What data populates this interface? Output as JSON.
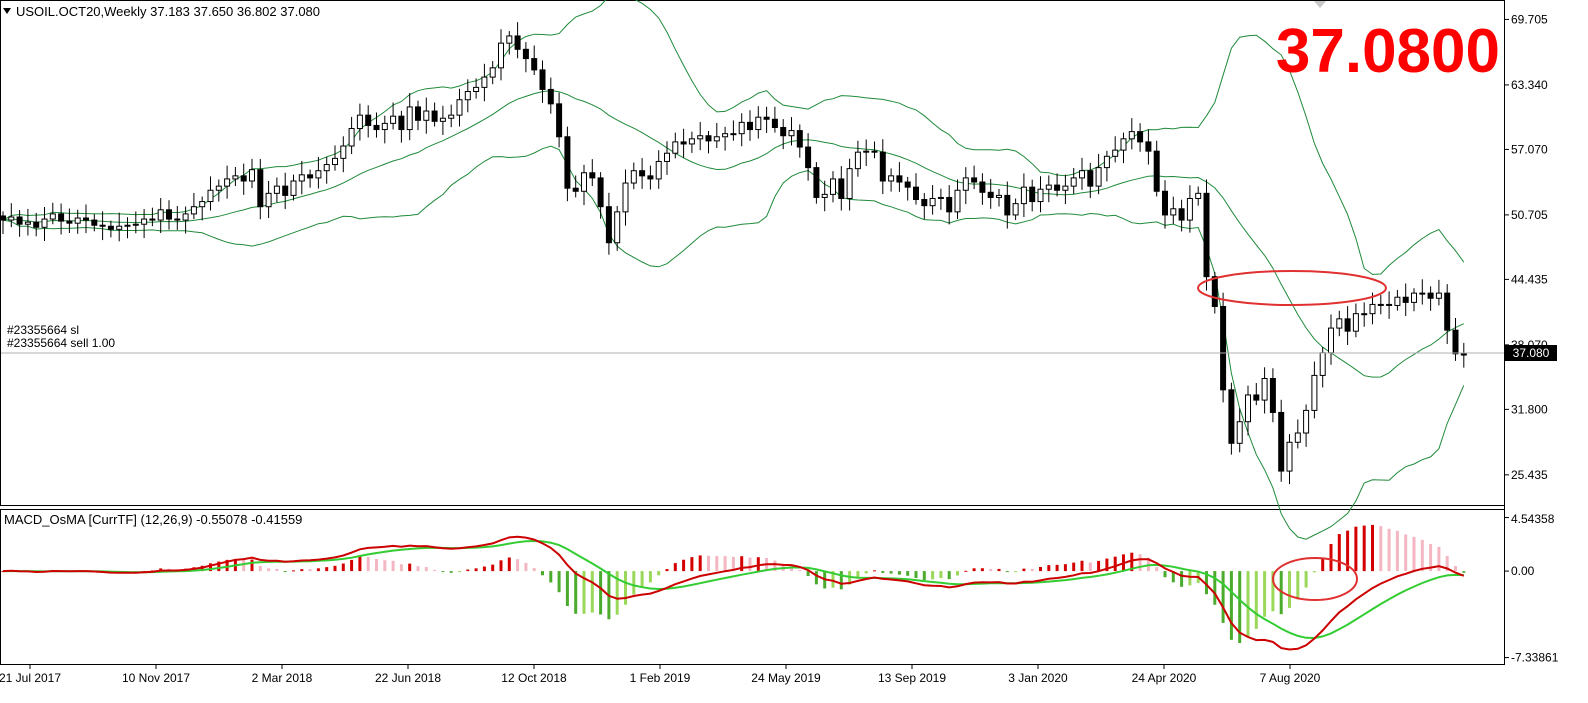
{
  "header": {
    "symbol_line": "USOIL.OCT20,Weekly  37.183 37.650 36.802 37.080",
    "big_price": "37.0800",
    "big_price_color": "#ff0000"
  },
  "orders": {
    "line1": "#23355664 sl",
    "line2": "#23355664 sell 1.00"
  },
  "indicator": {
    "label": "MACD_OsMA [CurrTF] (12,26,9) -0.55078 -0.41559"
  },
  "colors": {
    "candle": "#000000",
    "bands": "#1f8a3a",
    "macd_line": "#cc0000",
    "signal_line": "#33cc33",
    "hist_pos_strong": "#d40000",
    "hist_pos_weak": "#f4b6c2",
    "hist_neg_weak": "#9ad85a",
    "hist_neg_strong": "#4bab2c",
    "annotation": "#e03030"
  },
  "chart_data": [
    {
      "type": "candlestick",
      "title": "USOIL.OCT20,Weekly",
      "current_price": 37.08,
      "price_axis_ticks": [
        "69.705",
        "63.340",
        "57.070",
        "50.705",
        "44.435",
        "38.070",
        "31.800",
        "25.435"
      ],
      "price_axis_values": [
        69.705,
        63.34,
        57.07,
        50.705,
        44.435,
        38.07,
        31.8,
        25.435
      ],
      "current_price_label": "37.080",
      "ylim": [
        22.6,
        71.4
      ],
      "date_axis_labels": [
        "21 Jul 2017",
        "10 Nov 2017",
        "2 Mar 2018",
        "22 Jun 2018",
        "12 Oct 2018",
        "1 Feb 2019",
        "24 May 2019",
        "13 Sep 2019",
        "3 Jan 2020",
        "24 Apr 2020",
        "7 Aug 2020"
      ],
      "weekly_closes": [
        50.2,
        50.5,
        49.8,
        50.0,
        49.5,
        50.3,
        50.8,
        50.1,
        49.9,
        50.4,
        50.2,
        49.7,
        49.6,
        49.3,
        49.6,
        49.7,
        49.8,
        50.3,
        50.2,
        51.2,
        50.3,
        50.2,
        50.8,
        51.5,
        52.0,
        53.1,
        53.5,
        54.2,
        54.5,
        54.0,
        55.1,
        51.5,
        52.8,
        53.5,
        52.6,
        54.0,
        54.6,
        54.3,
        55.0,
        55.6,
        56.2,
        57.4,
        59.1,
        60.4,
        59.4,
        59.0,
        59.6,
        60.3,
        59.0,
        61.2,
        59.9,
        60.8,
        59.8,
        60.1,
        60.4,
        61.9,
        62.7,
        63.1,
        64.1,
        65.0,
        67.4,
        68.1,
        66.8,
        65.9,
        64.8,
        62.9,
        61.5,
        58.3,
        53.3,
        53.0,
        54.8,
        54.3,
        51.5,
        48.0,
        51.0,
        53.8,
        55.0,
        54.5,
        54.2,
        55.9,
        56.7,
        57.8,
        57.6,
        58.1,
        58.4,
        57.9,
        58.3,
        58.6,
        58.6,
        59.7,
        59.0,
        60.2,
        60.0,
        59.2,
        58.4,
        58.9,
        57.3,
        55.3,
        52.4,
        52.7,
        54.2,
        52.3,
        55.2,
        56.8,
        56.9,
        56.8,
        54.0,
        54.5,
        53.9,
        53.4,
        52.2,
        51.6,
        52.3,
        52.4,
        51.0,
        53.1,
        54.3,
        53.9,
        52.9,
        52.4,
        52.6,
        50.7,
        51.8,
        53.4,
        52.0,
        53.2,
        53.6,
        53.1,
        53.5,
        54.3,
        55.0,
        53.5,
        55.3,
        56.4,
        57.0,
        58.1,
        58.8,
        57.8,
        56.9,
        53.0,
        50.7,
        51.3,
        50.2,
        52.3,
        52.8,
        44.7,
        41.8,
        33.7,
        28.5,
        30.6,
        33.2,
        32.7,
        34.8,
        31.5,
        25.8,
        28.6,
        29.5,
        31.7,
        35.1,
        37.3,
        39.7,
        40.6,
        39.4,
        41.1,
        41.1,
        42.0,
        42.0,
        41.9,
        42.7,
        42.2,
        43.1,
        43.1,
        42.6,
        43.1,
        39.5,
        37.2,
        37.08
      ],
      "bollinger": {
        "period": "20",
        "deviation": "2"
      }
    },
    {
      "type": "histogram+line",
      "title": "MACD_OsMA [CurrTF] (12,26,9)",
      "values_shown": [
        -0.55078,
        -0.41559
      ],
      "axis_ticks": [
        "4.54358",
        "0.00",
        "-7.33861"
      ],
      "axis_values": [
        4.54358,
        0,
        -7.33861
      ],
      "ylim": [
        -7.8,
        5.1
      ],
      "series": [
        {
          "name": "MACD",
          "color": "#cc0000"
        },
        {
          "name": "Signal",
          "color": "#33cc33"
        }
      ]
    }
  ]
}
